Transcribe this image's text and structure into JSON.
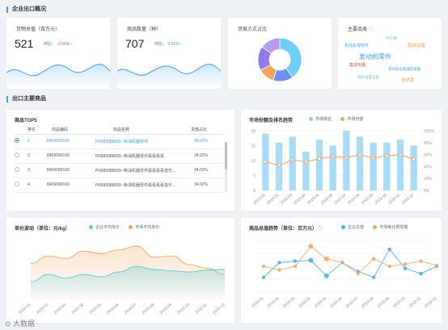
{
  "sections": {
    "overview": "企业出口概况",
    "products": "出口主要商品"
  },
  "kpi1": {
    "title": "货物总值（百万元）",
    "value": "521",
    "ratio_label": "环比：",
    "ratio_value": "-3.94%",
    "arrow": "↓"
  },
  "kpi2": {
    "title": "商品数量（种）",
    "value": "707",
    "ratio_label": "环比：",
    "ratio_value": "5.61%",
    "arrow": "↑"
  },
  "trade": {
    "title": "贸易方式占比"
  },
  "main_cat": {
    "title": "主要品类",
    "info_icon": "ⓘ",
    "words": [
      "伴侣螺",
      "机动车零附件",
      "基础设备",
      "发动机零件",
      "集成电路",
      "合同加全氧器的泵酸",
      "电机设置设备",
      "液体泵"
    ]
  },
  "top5": {
    "title": "商品TOP5",
    "headers": [
      "排名",
      "商品编码",
      "商品名称",
      "货值占比"
    ],
    "rows": [
      {
        "rank": "1",
        "code": "8409999100",
        "name": "PK889988009--柴油机器零件",
        "share": "34.02%",
        "selected": true
      },
      {
        "rank": "2",
        "code": "8409999100",
        "name": "PK889988009--柴油机器零件看看看看",
        "share": "34.02%",
        "selected": false
      },
      {
        "rank": "3",
        "code": "8409999100",
        "name": "PK889988009--柴油机器零件看看看看音乐...",
        "share": "34.02%",
        "selected": false
      },
      {
        "rank": "4",
        "code": "8409999100",
        "name": "PK889988009--柴油机器零件看看看看音乐...",
        "share": "34.02%",
        "selected": false
      }
    ]
  },
  "colors": {
    "blue": "#3ba1f0",
    "orange": "#f6a35c",
    "teal": "#5cc7d2"
  },
  "chart_data": [
    {
      "type": "pie",
      "title": "贸易方式占比",
      "values": [
        40,
        15,
        12,
        18,
        15
      ],
      "colors": [
        "#6fd0f5",
        "#6f8ff3",
        "#f7a35c",
        "#8d7be8",
        "#b59cf0"
      ]
    },
    {
      "type": "bar",
      "title": "市场份额及排名趋势",
      "categories": [
        "2019-01",
        "2019-02",
        "2019-03",
        "2019-04",
        "2019-05",
        "2019-06",
        "2019-07",
        "2019-08",
        "2019-09",
        "2019-10",
        "2019-11",
        "2019-12"
      ],
      "series": [
        {
          "name": "市场排名",
          "values": [
            19,
            16,
            18,
            13,
            17,
            15,
            20,
            18,
            16,
            16,
            17,
            15
          ]
        },
        {
          "name": "市场份额",
          "values": [
            48,
            42,
            51,
            48,
            53,
            57,
            55,
            60,
            54,
            58,
            60,
            52
          ]
        }
      ],
      "ylim_left": [
        0,
        20
      ],
      "ylim_right": [
        0,
        100
      ],
      "yticks_left": [
        "0",
        "5",
        "10",
        "15",
        "20"
      ],
      "yticks_right": [
        "0%",
        "20%",
        "40%",
        "60%",
        "80%",
        "100%"
      ]
    },
    {
      "type": "area",
      "title": "单价波动（单位：元/kg）",
      "categories": [
        "2019-01",
        "2019-02",
        "2019-03",
        "2019-04",
        "2019-05",
        "2019-06",
        "2019-07",
        "2019-08",
        "2019-09",
        "2019-10",
        "2019-11",
        "2019-12"
      ],
      "series": [
        {
          "name": "企业平均单价",
          "values": [
            30,
            42,
            36,
            42,
            38,
            46,
            55,
            50,
            48,
            46,
            49,
            50
          ]
        },
        {
          "name": "市场平均单价",
          "values": [
            60,
            72,
            68,
            80,
            76,
            82,
            88,
            70,
            72,
            58,
            52,
            42
          ]
        }
      ]
    },
    {
      "type": "line",
      "title": "商品总值趋势（单位：百万元）",
      "info_icon": "ⓘ",
      "categories": [
        "2019-01",
        "2019-02",
        "2019-03",
        "2019-04",
        "2019-05",
        "2019-06",
        "2019-07",
        "2019-08",
        "2019-09",
        "2019-10",
        "2019-11",
        "2019-12"
      ],
      "series": [
        {
          "name": "企业总值",
          "values": [
            20,
            40,
            42,
            43,
            22,
            40,
            28,
            20,
            58,
            32,
            25,
            35
          ]
        },
        {
          "name": "市场等比例规模",
          "values": [
            35,
            30,
            35,
            62,
            45,
            40,
            25,
            45,
            35,
            38,
            42,
            36
          ]
        }
      ]
    }
  ]
}
